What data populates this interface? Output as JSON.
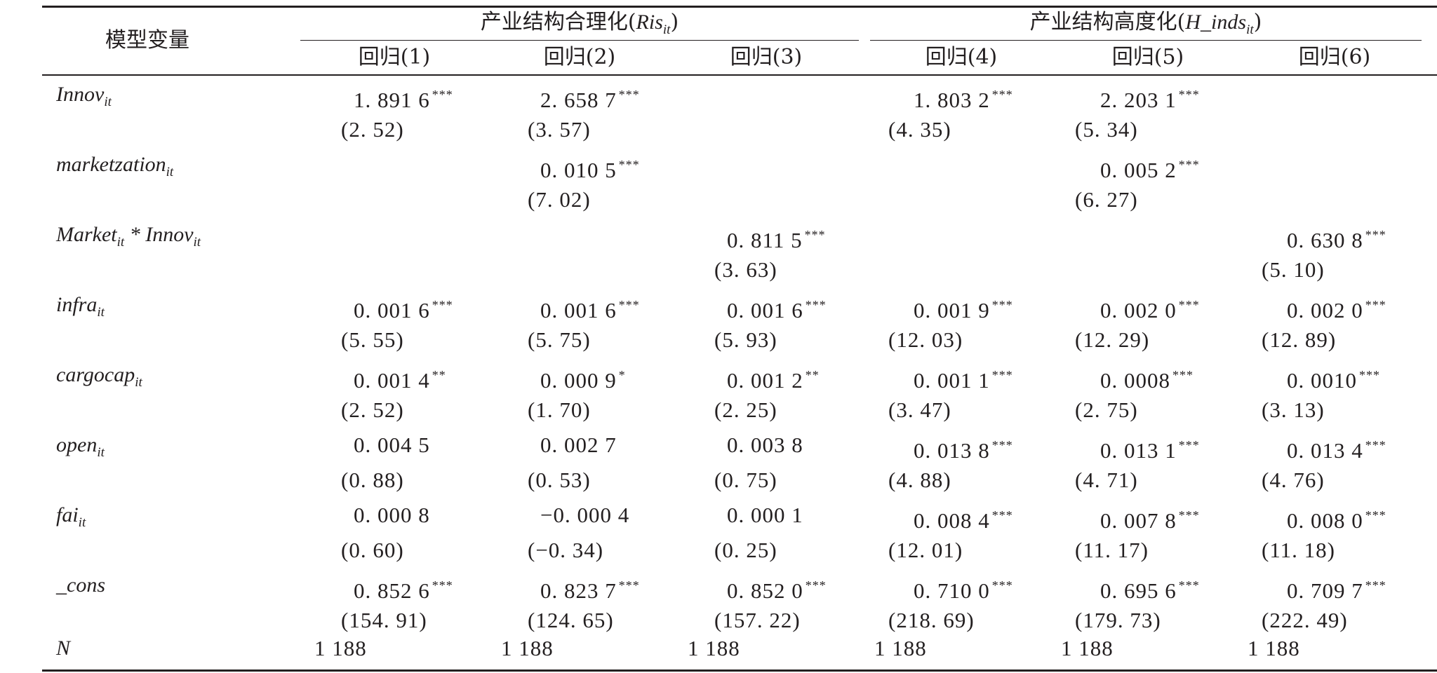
{
  "table": {
    "stub_header": "模型变量",
    "group_headers": [
      {
        "label": "产业结构合理化(",
        "var": "Ris",
        "sub": "it",
        "close": ")"
      },
      {
        "label": "产业结构高度化(",
        "var": "H_inds",
        "sub": "it",
        "close": ")"
      }
    ],
    "columns": [
      "回归(1)",
      "回归(2)",
      "回归(3)",
      "回归(4)",
      "回归(5)",
      "回归(6)"
    ],
    "rows": [
      {
        "var_parts": [
          {
            "name": "Innov",
            "sub": "it"
          }
        ],
        "coef": [
          {
            "v": "1. 891 6",
            "s": "***"
          },
          {
            "v": "2. 658 7",
            "s": "***"
          },
          {
            "v": "",
            "s": ""
          },
          {
            "v": "1. 803 2",
            "s": "***"
          },
          {
            "v": "2. 203 1",
            "s": "***"
          },
          {
            "v": "",
            "s": ""
          }
        ],
        "t": [
          "(2. 52)",
          "(3. 57)",
          "",
          "(4. 35)",
          "(5. 34)",
          ""
        ]
      },
      {
        "var_parts": [
          {
            "name": "marketzation",
            "sub": "it"
          }
        ],
        "coef": [
          {
            "v": "",
            "s": ""
          },
          {
            "v": "0. 010 5",
            "s": "***"
          },
          {
            "v": "",
            "s": ""
          },
          {
            "v": "",
            "s": ""
          },
          {
            "v": "0. 005 2",
            "s": "***"
          },
          {
            "v": "",
            "s": ""
          }
        ],
        "t": [
          "",
          "(7. 02)",
          "",
          "",
          "(6. 27)",
          ""
        ]
      },
      {
        "var_parts": [
          {
            "name": "Market",
            "sub": "it"
          },
          {
            "name": " * Innov",
            "sub": "it"
          }
        ],
        "coef": [
          {
            "v": "",
            "s": ""
          },
          {
            "v": "",
            "s": ""
          },
          {
            "v": "0. 811 5",
            "s": "***"
          },
          {
            "v": "",
            "s": ""
          },
          {
            "v": "",
            "s": ""
          },
          {
            "v": "0. 630 8",
            "s": "***"
          }
        ],
        "t": [
          "",
          "",
          "(3. 63)",
          "",
          "",
          "(5. 10)"
        ]
      },
      {
        "var_parts": [
          {
            "name": "infra",
            "sub": "it"
          }
        ],
        "coef": [
          {
            "v": "0. 001 6",
            "s": "***"
          },
          {
            "v": "0. 001 6",
            "s": "***"
          },
          {
            "v": "0. 001 6",
            "s": "***"
          },
          {
            "v": "0. 001 9",
            "s": "***"
          },
          {
            "v": "0. 002 0",
            "s": "***"
          },
          {
            "v": "0. 002 0",
            "s": "***"
          }
        ],
        "t": [
          "(5. 55)",
          "(5. 75)",
          "(5. 93)",
          "(12. 03)",
          "(12. 29)",
          "(12. 89)"
        ]
      },
      {
        "var_parts": [
          {
            "name": "cargocap",
            "sub": "it"
          }
        ],
        "coef": [
          {
            "v": "0. 001 4",
            "s": "**"
          },
          {
            "v": "0. 000 9",
            "s": "*"
          },
          {
            "v": "0. 001 2",
            "s": "**"
          },
          {
            "v": "0. 001 1",
            "s": "***"
          },
          {
            "v": "0. 0008",
            "s": "***"
          },
          {
            "v": "0. 0010",
            "s": "***"
          }
        ],
        "t": [
          "(2. 52)",
          "(1. 70)",
          "(2. 25)",
          "(3. 47)",
          "(2. 75)",
          "(3. 13)"
        ]
      },
      {
        "var_parts": [
          {
            "name": "open",
            "sub": "it"
          }
        ],
        "coef": [
          {
            "v": "0. 004 5",
            "s": ""
          },
          {
            "v": "0. 002 7",
            "s": ""
          },
          {
            "v": "0. 003 8",
            "s": ""
          },
          {
            "v": "0. 013 8",
            "s": "***"
          },
          {
            "v": "0. 013 1",
            "s": "***"
          },
          {
            "v": "0. 013 4",
            "s": "***"
          }
        ],
        "t": [
          "(0. 88)",
          "(0. 53)",
          "(0. 75)",
          "(4. 88)",
          "(4. 71)",
          "(4. 76)"
        ]
      },
      {
        "var_parts": [
          {
            "name": "fai",
            "sub": "it"
          }
        ],
        "coef": [
          {
            "v": "0. 000 8",
            "s": ""
          },
          {
            "v": "−0. 000 4",
            "s": ""
          },
          {
            "v": "0. 000 1",
            "s": ""
          },
          {
            "v": "0. 008 4",
            "s": "***"
          },
          {
            "v": "0. 007 8",
            "s": "***"
          },
          {
            "v": "0. 008 0",
            "s": "***"
          }
        ],
        "t": [
          "(0. 60)",
          "(−0. 34)",
          "(0. 25)",
          "(12. 01)",
          "(11. 17)",
          "(11. 18)"
        ]
      },
      {
        "var_parts": [
          {
            "name": "_cons",
            "sub": ""
          }
        ],
        "coef": [
          {
            "v": "0. 852 6",
            "s": "***"
          },
          {
            "v": "0. 823 7",
            "s": "***"
          },
          {
            "v": "0. 852 0",
            "s": "***"
          },
          {
            "v": "0. 710 0",
            "s": "***"
          },
          {
            "v": "0. 695 6",
            "s": "***"
          },
          {
            "v": "0. 709 7",
            "s": "***"
          }
        ],
        "t": [
          "(154. 91)",
          "(124. 65)",
          "(157. 22)",
          "(218. 69)",
          "(179. 73)",
          "(222. 49)"
        ]
      }
    ],
    "n_row": {
      "var": "N",
      "values": [
        "1 188",
        "1 188",
        "1 188",
        "1 188",
        "1 188",
        "1 188"
      ]
    }
  }
}
